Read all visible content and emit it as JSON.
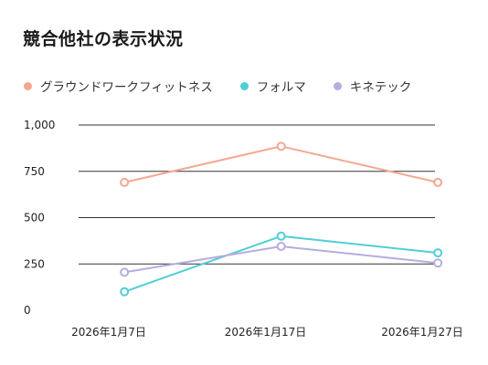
{
  "title": "競合他社の表示状況",
  "chart_data": {
    "type": "line",
    "x": [
      "2026-01-07",
      "2026-01-17",
      "2026-01-27"
    ],
    "x_tick_labels": [
      "2026年1月7日",
      "2026年1月17日",
      "2026年1月27日"
    ],
    "ylim": [
      0,
      1000
    ],
    "y_ticks": [
      0,
      250,
      500,
      750,
      1000
    ],
    "y_tick_labels": [
      "0",
      "250",
      "500",
      "750",
      "1,000"
    ],
    "grid": true,
    "legend_position": "top-left",
    "series": [
      {
        "name": "グラウンドワークフィットネス",
        "color": "#F4A892",
        "points": [
          {
            "x": "2026-01-08",
            "y": 690
          },
          {
            "x": "2026-01-18",
            "y": 885
          },
          {
            "x": "2026-01-28",
            "y": 690
          }
        ]
      },
      {
        "name": "フォルマ",
        "color": "#4FCFD6",
        "points": [
          {
            "x": "2026-01-08",
            "y": 100
          },
          {
            "x": "2026-01-18",
            "y": 400
          },
          {
            "x": "2026-01-28",
            "y": 310
          }
        ]
      },
      {
        "name": "キネテック",
        "color": "#B7ACE0",
        "points": [
          {
            "x": "2026-01-08",
            "y": 205
          },
          {
            "x": "2026-01-18",
            "y": 345
          },
          {
            "x": "2026-01-28",
            "y": 255
          }
        ]
      }
    ]
  }
}
